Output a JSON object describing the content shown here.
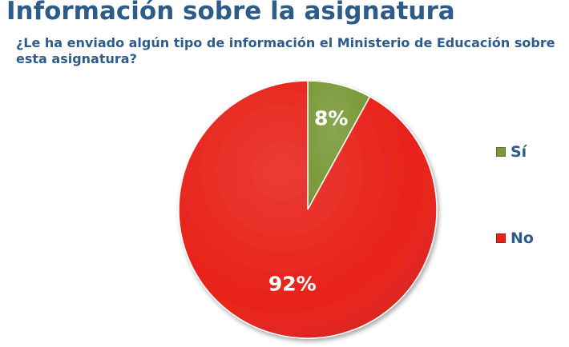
{
  "header": {
    "title": "Información sobre la asignatura",
    "question": "¿Le ha enviado algún tipo de información el Ministerio de Educación sobre esta asignatura?"
  },
  "chart_data": {
    "type": "pie",
    "title": "",
    "categories": [
      "Sí",
      "No"
    ],
    "values": [
      8,
      92
    ],
    "data_labels": [
      "8%",
      "92%"
    ],
    "colors": [
      "#7A9A3A",
      "#E8221A"
    ],
    "legend_position": "right"
  }
}
